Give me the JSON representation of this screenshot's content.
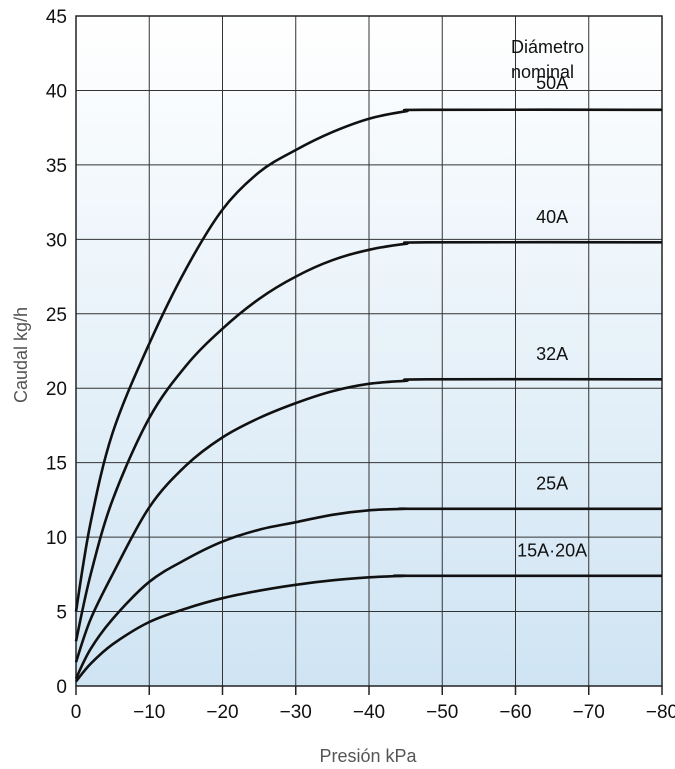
{
  "chart_data": {
    "type": "line",
    "title": "",
    "xlabel": "Presión kPa",
    "ylabel": "Caudal kg/h",
    "xlim": [
      0,
      -80
    ],
    "ylim": [
      0,
      45
    ],
    "x_ticks": [
      0,
      -10,
      -20,
      -30,
      -40,
      -50,
      -60,
      -70,
      -80
    ],
    "x_tick_labels": [
      "0",
      "−10",
      "−20",
      "−30",
      "−40",
      "−50",
      "−60",
      "−70",
      "−80"
    ],
    "y_ticks": [
      0,
      5,
      10,
      15,
      20,
      25,
      30,
      35,
      40,
      45
    ],
    "y_tick_labels": [
      "0",
      "5",
      "10",
      "15",
      "20",
      "25",
      "30",
      "35",
      "40",
      "45"
    ],
    "grid": true,
    "background_gradient": [
      "#ffffff",
      "#cfe4f3"
    ],
    "legend_title_lines": [
      "Diámetro",
      "nominal"
    ],
    "series": [
      {
        "name": "50A",
        "x": [
          0,
          -2,
          -5,
          -10,
          -15,
          -20,
          -25,
          -30,
          -35,
          -40,
          -45,
          -48,
          -80
        ],
        "y": [
          5,
          11,
          17,
          23,
          28,
          32,
          34.5,
          36,
          37.2,
          38.1,
          38.6,
          38.7,
          38.7
        ]
      },
      {
        "name": "40A",
        "x": [
          0,
          -2,
          -5,
          -10,
          -15,
          -20,
          -25,
          -30,
          -35,
          -40,
          -45,
          -48,
          -80
        ],
        "y": [
          3,
          7.5,
          12.5,
          18,
          21.5,
          24,
          26,
          27.5,
          28.6,
          29.3,
          29.7,
          29.8,
          29.8
        ]
      },
      {
        "name": "32A",
        "x": [
          0,
          -2,
          -5,
          -10,
          -15,
          -20,
          -25,
          -30,
          -35,
          -40,
          -45,
          -48,
          -80
        ],
        "y": [
          1.6,
          4.5,
          7.5,
          12,
          14.8,
          16.7,
          18,
          19,
          19.8,
          20.3,
          20.5,
          20.6,
          20.6
        ]
      },
      {
        "name": "25A",
        "x": [
          0,
          -2,
          -5,
          -10,
          -15,
          -20,
          -25,
          -30,
          -35,
          -40,
          -45,
          -47,
          -80
        ],
        "y": [
          0.5,
          2.5,
          4.5,
          7,
          8.5,
          9.7,
          10.5,
          11,
          11.5,
          11.8,
          11.9,
          11.9,
          11.9
        ]
      },
      {
        "name": "15A·20A",
        "x": [
          0,
          -2,
          -5,
          -10,
          -15,
          -20,
          -25,
          -30,
          -35,
          -40,
          -45,
          -46,
          -80
        ],
        "y": [
          0.3,
          1.5,
          2.8,
          4.3,
          5.2,
          5.9,
          6.4,
          6.8,
          7.1,
          7.3,
          7.4,
          7.4,
          7.4
        ]
      }
    ],
    "series_label_positions": [
      {
        "name": "50A",
        "label_x": -65,
        "label_y": 40.1
      },
      {
        "name": "40A",
        "label_x": -65,
        "label_y": 31.1
      },
      {
        "name": "32A",
        "label_x": -65,
        "label_y": 21.9
      },
      {
        "name": "25A",
        "label_x": -65,
        "label_y": 13.2
      },
      {
        "name": "15A·20A",
        "label_x": -65,
        "label_y": 8.7
      }
    ]
  }
}
